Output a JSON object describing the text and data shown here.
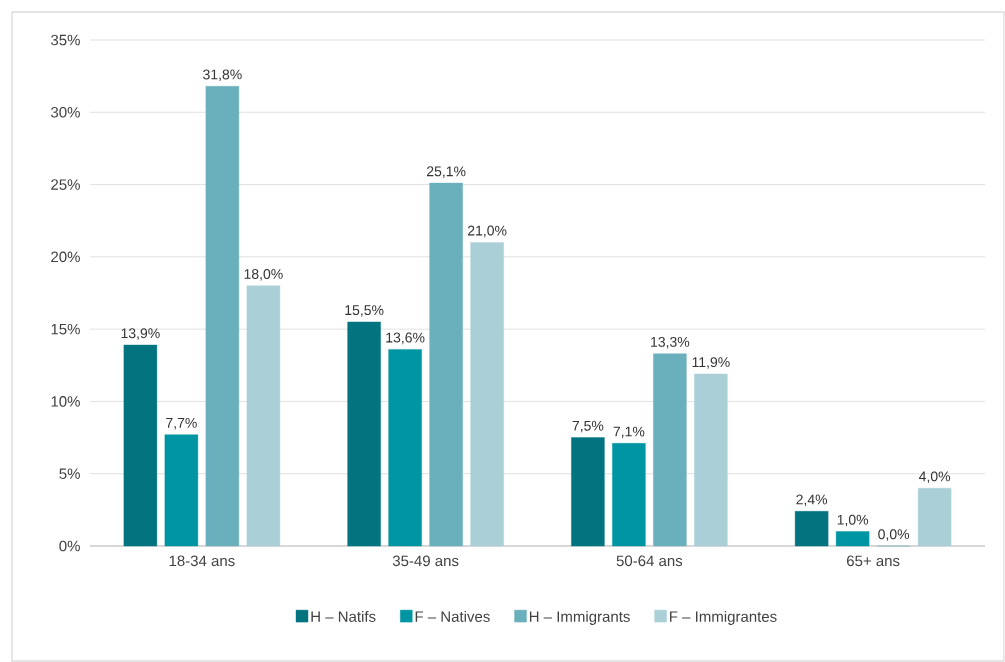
{
  "chart_data": {
    "type": "bar",
    "categories": [
      "18-34 ans",
      "35-49 ans",
      "50-64 ans",
      "65+ ans"
    ],
    "series": [
      {
        "name": "H – Natifs",
        "color": "#027480",
        "values": [
          13.9,
          15.5,
          7.5,
          2.4
        ],
        "value_labels": [
          "13,9%",
          "15,5%",
          "7,5%",
          "2,4%"
        ]
      },
      {
        "name": "F – Natives",
        "color": "#0095a3",
        "values": [
          7.7,
          13.6,
          7.1,
          1.0
        ],
        "value_labels": [
          "7,7%",
          "13,6%",
          "7,1%",
          "1,0%"
        ]
      },
      {
        "name": "H – Immigrants",
        "color": "#6ab0bc",
        "values": [
          31.8,
          25.1,
          13.3,
          0.0
        ],
        "value_labels": [
          "31,8%",
          "25,1%",
          "13,3%",
          "0,0%"
        ]
      },
      {
        "name": "F – Immigrantes",
        "color": "#abcfd6",
        "values": [
          18.0,
          21.0,
          11.9,
          4.0
        ],
        "value_labels": [
          "18,0%",
          "21,0%",
          "11,9%",
          "4,0%"
        ]
      }
    ],
    "ylim": [
      0,
      35
    ],
    "yticks": [
      {
        "value": 0,
        "label": "0%"
      },
      {
        "value": 5,
        "label": "5%"
      },
      {
        "value": 10,
        "label": "10%"
      },
      {
        "value": 15,
        "label": "15%"
      },
      {
        "value": 20,
        "label": "20%"
      },
      {
        "value": 25,
        "label": "25%"
      },
      {
        "value": 30,
        "label": "30%"
      },
      {
        "value": 35,
        "label": "35%"
      }
    ],
    "grid": "y",
    "legend": "bottom"
  }
}
